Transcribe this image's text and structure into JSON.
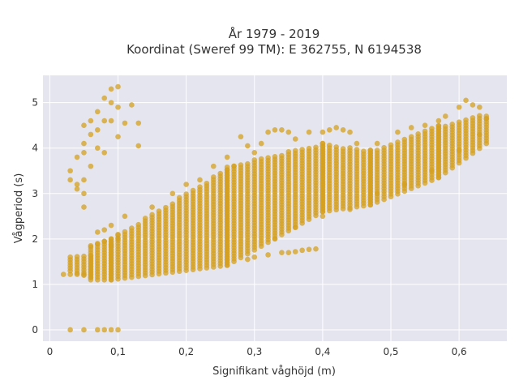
{
  "chart_data": {
    "type": "scatter",
    "title_line1": "År 1979 - 2019",
    "title_line2": "Koordinat (Sweref 99 TM): E 362755, N 6194538",
    "xlabel": "Signifikant våghöjd (m)",
    "ylabel": "Vågperiod (s)",
    "xlim": [
      -0.01,
      0.67
    ],
    "ylim": [
      -0.25,
      5.6
    ],
    "x_ticks": [
      0,
      0.1,
      0.2,
      0.3,
      0.4,
      0.5,
      0.6
    ],
    "x_tick_labels": [
      "0",
      "0,1",
      "0,2",
      "0,3",
      "0,4",
      "0,5",
      "0,6"
    ],
    "y_ticks": [
      0,
      1,
      2,
      3,
      4,
      5
    ],
    "y_tick_labels": [
      "0",
      "1",
      "2",
      "3",
      "4",
      "5"
    ],
    "grid": true,
    "legend": "none",
    "marker_color": "#D4A020",
    "plot_bg": "#E5E5EF",
    "series": [
      {
        "points": [
          [
            0.03,
            0.0
          ],
          [
            0.05,
            0.0
          ],
          [
            0.07,
            0.0
          ],
          [
            0.08,
            0.0
          ],
          [
            0.09,
            0.0
          ],
          [
            0.1,
            0.0
          ],
          [
            0.02,
            1.22
          ],
          [
            0.03,
            1.22
          ],
          [
            0.04,
            1.22
          ],
          [
            0.05,
            1.22
          ],
          [
            0.03,
            3.5
          ],
          [
            0.03,
            3.3
          ],
          [
            0.04,
            3.2
          ],
          [
            0.04,
            3.1
          ],
          [
            0.05,
            2.7
          ],
          [
            0.05,
            3.0
          ],
          [
            0.04,
            3.8
          ],
          [
            0.05,
            3.9
          ],
          [
            0.05,
            4.1
          ],
          [
            0.06,
            4.3
          ],
          [
            0.06,
            4.6
          ],
          [
            0.05,
            4.5
          ],
          [
            0.07,
            4.4
          ],
          [
            0.08,
            4.6
          ],
          [
            0.07,
            4.8
          ],
          [
            0.08,
            5.1
          ],
          [
            0.09,
            5.0
          ],
          [
            0.1,
            4.9
          ],
          [
            0.09,
            5.3
          ],
          [
            0.1,
            5.35
          ],
          [
            0.12,
            4.95
          ],
          [
            0.13,
            4.55
          ],
          [
            0.13,
            4.05
          ],
          [
            0.1,
            4.25
          ],
          [
            0.09,
            4.6
          ],
          [
            0.11,
            4.55
          ],
          [
            0.07,
            4.0
          ],
          [
            0.08,
            3.9
          ],
          [
            0.06,
            3.6
          ],
          [
            0.05,
            3.3
          ],
          [
            0.06,
            1.85
          ],
          [
            0.07,
            1.9
          ],
          [
            0.08,
            1.95
          ],
          [
            0.08,
            2.2
          ],
          [
            0.09,
            2.3
          ],
          [
            0.1,
            2.1
          ],
          [
            0.09,
            1.85
          ],
          [
            0.1,
            2.0
          ],
          [
            0.07,
            2.15
          ],
          [
            0.11,
            2.5
          ],
          [
            0.15,
            2.7
          ],
          [
            0.18,
            3.0
          ],
          [
            0.2,
            3.2
          ],
          [
            0.22,
            3.3
          ],
          [
            0.24,
            3.6
          ],
          [
            0.26,
            3.8
          ],
          [
            0.27,
            3.6
          ],
          [
            0.28,
            4.25
          ],
          [
            0.29,
            4.05
          ],
          [
            0.3,
            3.9
          ],
          [
            0.31,
            4.1
          ],
          [
            0.32,
            4.35
          ],
          [
            0.33,
            4.4
          ],
          [
            0.34,
            4.4
          ],
          [
            0.35,
            4.35
          ],
          [
            0.36,
            4.2
          ],
          [
            0.38,
            4.35
          ],
          [
            0.4,
            4.35
          ],
          [
            0.41,
            4.4
          ],
          [
            0.42,
            4.45
          ],
          [
            0.43,
            4.4
          ],
          [
            0.44,
            4.35
          ],
          [
            0.45,
            4.1
          ],
          [
            0.48,
            4.1
          ],
          [
            0.51,
            4.35
          ],
          [
            0.53,
            4.45
          ],
          [
            0.55,
            4.5
          ],
          [
            0.57,
            4.6
          ],
          [
            0.58,
            4.7
          ],
          [
            0.6,
            4.9
          ],
          [
            0.61,
            5.05
          ],
          [
            0.62,
            4.95
          ],
          [
            0.63,
            4.9
          ],
          [
            0.64,
            4.65
          ],
          [
            0.29,
            1.55
          ],
          [
            0.3,
            1.6
          ],
          [
            0.32,
            1.65
          ],
          [
            0.34,
            1.7
          ],
          [
            0.35,
            1.7
          ],
          [
            0.36,
            1.72
          ],
          [
            0.37,
            1.75
          ],
          [
            0.38,
            1.77
          ],
          [
            0.39,
            1.78
          ],
          [
            0.33,
            2.0
          ],
          [
            0.36,
            2.25
          ],
          [
            0.4,
            2.5
          ],
          [
            0.44,
            2.65
          ],
          [
            0.48,
            3.0
          ],
          [
            0.52,
            3.2
          ],
          [
            0.56,
            3.5
          ],
          [
            0.6,
            3.95
          ],
          [
            0.63,
            4.3
          ]
        ]
      }
    ],
    "bands": [
      {
        "x_start": 0.03,
        "x_end": 0.06,
        "lows": [
          1.3,
          1.15
        ],
        "highs": [
          1.6,
          1.65
        ]
      },
      {
        "x_start": 0.06,
        "x_end": 0.09,
        "lows": [
          1.1,
          1.1
        ],
        "highs": [
          1.85,
          2.0
        ]
      },
      {
        "x_start": 0.09,
        "x_end": 0.26,
        "lows": [
          1.1,
          1.42
        ],
        "highs": [
          2.0,
          3.55
        ]
      },
      {
        "x_start": 0.26,
        "x_end": 0.4,
        "lows": [
          1.42,
          2.6
        ],
        "highs": [
          3.6,
          4.1
        ]
      },
      {
        "x_start": 0.4,
        "x_end": 0.47,
        "lows": [
          2.6,
          2.75
        ],
        "highs": [
          4.1,
          3.95
        ]
      },
      {
        "x_start": 0.47,
        "x_end": 0.57,
        "lows": [
          2.75,
          3.35
        ],
        "highs": [
          3.95,
          4.5
        ]
      },
      {
        "x_start": 0.57,
        "x_end": 0.64,
        "lows": [
          3.35,
          4.1
        ],
        "highs": [
          4.5,
          4.75
        ]
      }
    ]
  }
}
